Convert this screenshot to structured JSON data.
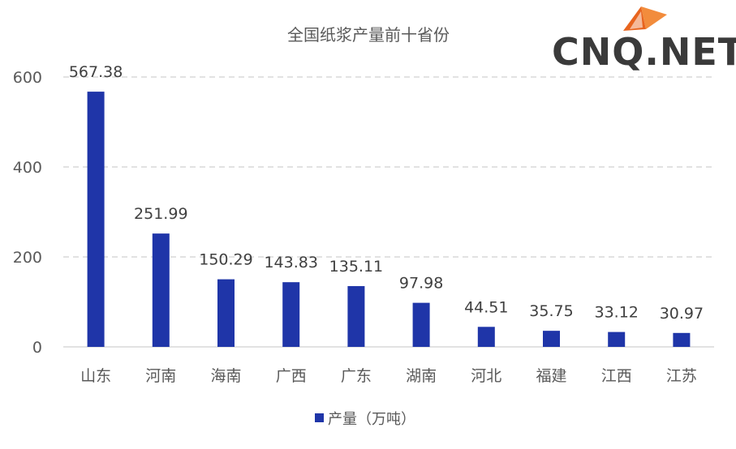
{
  "logo": {
    "text": "CNQ.NET",
    "accent_color": "#e8641e"
  },
  "chart_data": {
    "type": "bar",
    "title": "全国纸浆产量前十省份",
    "categories": [
      "山东",
      "河南",
      "海南",
      "广西",
      "广东",
      "湖南",
      "河北",
      "福建",
      "江西",
      "江苏"
    ],
    "series": [
      {
        "name": "产量（万吨）",
        "color": "#1f35a8",
        "values": [
          567.38,
          251.99,
          150.29,
          143.83,
          135.11,
          97.98,
          44.51,
          35.75,
          33.12,
          30.97
        ],
        "labels": [
          "567.38",
          "251.99",
          "150.29",
          "143.83",
          "135.11",
          "97.98",
          "44.51",
          "35.75",
          "33.12",
          "30.97"
        ]
      }
    ],
    "ylim": [
      0,
      600
    ],
    "yticks": [
      "0",
      "200",
      "400",
      "600"
    ],
    "grid": true,
    "legend_position": "bottom"
  }
}
